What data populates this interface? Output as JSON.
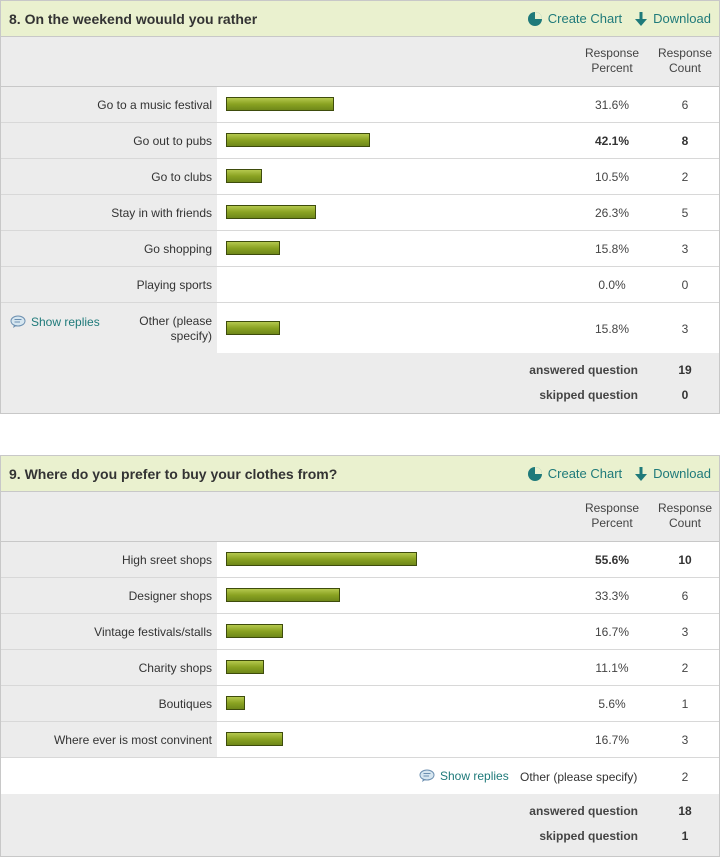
{
  "columns": {
    "percent": "Response\nPercent",
    "count": "Response\nCount"
  },
  "actions": {
    "create_chart": "Create Chart",
    "download": "Download"
  },
  "questions": [
    {
      "title": "8. On the weekend wouuld you rather",
      "answers": [
        {
          "label": "Go to a music festival",
          "percent": 31.6,
          "percent_text": "31.6%",
          "count": "6",
          "bold": false
        },
        {
          "label": "Go out to pubs",
          "percent": 42.1,
          "percent_text": "42.1%",
          "count": "8",
          "bold": true
        },
        {
          "label": "Go to clubs",
          "percent": 10.5,
          "percent_text": "10.5%",
          "count": "2",
          "bold": false
        },
        {
          "label": "Stay in with friends",
          "percent": 26.3,
          "percent_text": "26.3%",
          "count": "5",
          "bold": false
        },
        {
          "label": "Go shopping",
          "percent": 15.8,
          "percent_text": "15.8%",
          "count": "3",
          "bold": false
        },
        {
          "label": "Playing sports",
          "percent": 0.0,
          "percent_text": "0.0%",
          "count": "0",
          "bold": false
        },
        {
          "label": "Other (please specify)",
          "percent": 15.8,
          "percent_text": "15.8%",
          "count": "3",
          "bold": false,
          "show_replies": "Show replies"
        }
      ],
      "answered_label": "answered question",
      "answered": "19",
      "skipped_label": "skipped question",
      "skipped": "0"
    },
    {
      "title": "9. Where do you prefer to buy your clothes from?",
      "answers": [
        {
          "label": "High sreet shops",
          "percent": 55.6,
          "percent_text": "55.6%",
          "count": "10",
          "bold": true
        },
        {
          "label": "Designer shops",
          "percent": 33.3,
          "percent_text": "33.3%",
          "count": "6",
          "bold": false
        },
        {
          "label": "Vintage festivals/stalls",
          "percent": 16.7,
          "percent_text": "16.7%",
          "count": "3",
          "bold": false
        },
        {
          "label": "Charity shops",
          "percent": 11.1,
          "percent_text": "11.1%",
          "count": "2",
          "bold": false
        },
        {
          "label": "Boutiques",
          "percent": 5.6,
          "percent_text": "5.6%",
          "count": "1",
          "bold": false
        },
        {
          "label": "Where ever is most convinent",
          "percent": 16.7,
          "percent_text": "16.7%",
          "count": "3",
          "bold": false
        }
      ],
      "other_row": {
        "show_replies": "Show replies",
        "label": "Other (please specify)",
        "count": "2"
      },
      "answered_label": "answered question",
      "answered": "18",
      "skipped_label": "skipped question",
      "skipped": "1"
    }
  ],
  "colors": {
    "header_bg": "#eaf1cf",
    "link": "#1f7a7a",
    "bar_fill": "#8aa322",
    "bar_border": "#3e4c0c",
    "label_bg": "#ececec"
  },
  "icons": {
    "create_chart": "pie-chart-icon",
    "download": "download-arrow-icon",
    "show_replies": "speech-bubble-icon"
  }
}
